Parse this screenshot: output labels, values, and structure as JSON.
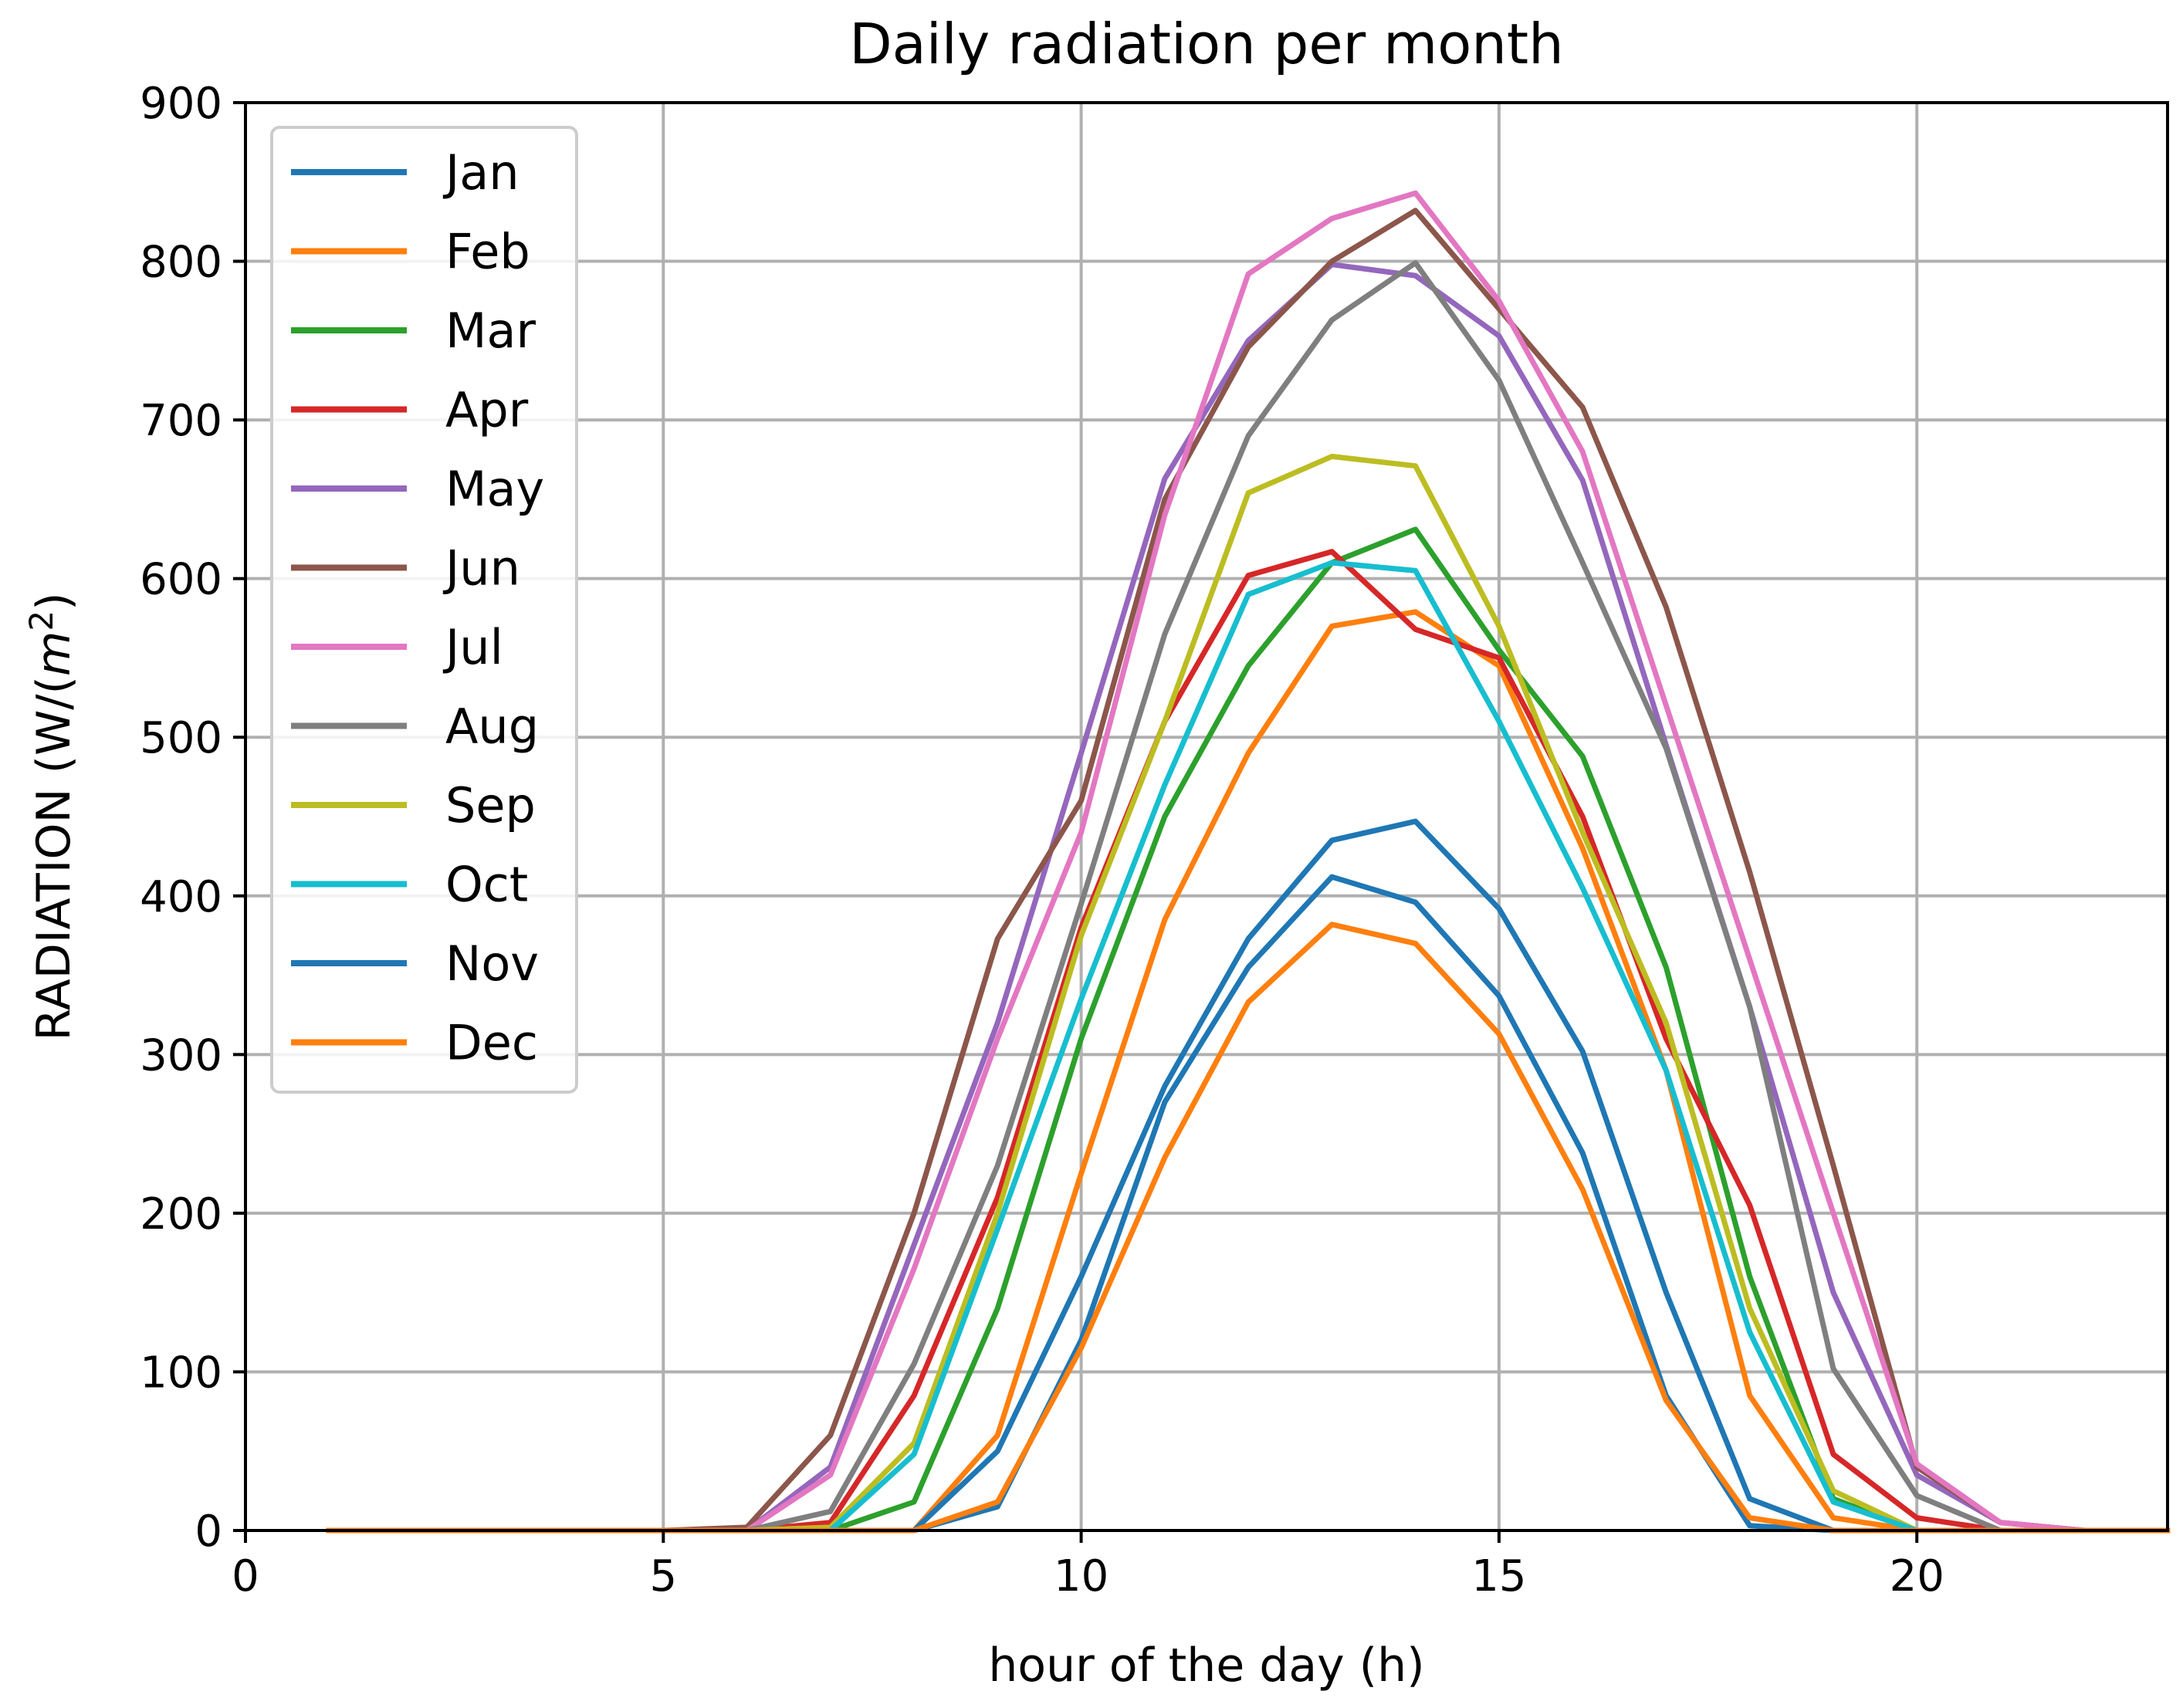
{
  "chart_data": {
    "type": "line",
    "title": "Daily radiation per month",
    "xlabel": "hour of the day (h)",
    "ylabel_prefix": "RADIATION (W/(",
    "ylabel_var": "m",
    "ylabel_sup": "2",
    "ylabel_suffix": ")",
    "xlim": [
      0,
      23
    ],
    "ylim": [
      0,
      900
    ],
    "xticks": [
      0,
      5,
      10,
      15,
      20
    ],
    "yticks": [
      0,
      100,
      200,
      300,
      400,
      500,
      600,
      700,
      800,
      900
    ],
    "grid": true,
    "legend_position": "top-left",
    "x": [
      1,
      2,
      3,
      4,
      5,
      6,
      7,
      8,
      9,
      10,
      11,
      12,
      13,
      14,
      15,
      16,
      17,
      18,
      19,
      20,
      21,
      22,
      23
    ],
    "series": [
      {
        "name": "Jan",
        "color": "#1f77b4",
        "values": [
          0,
          0,
          0,
          0,
          0,
          0,
          0,
          0,
          15,
          120,
          270,
          355,
          412,
          396,
          337,
          238,
          85,
          3,
          0,
          0,
          0,
          0,
          0
        ]
      },
      {
        "name": "Feb",
        "color": "#ff7f0e",
        "values": [
          0,
          0,
          0,
          0,
          0,
          0,
          0,
          0,
          60,
          225,
          385,
          490,
          570,
          579,
          545,
          430,
          290,
          85,
          8,
          0,
          0,
          0,
          0
        ]
      },
      {
        "name": "Mar",
        "color": "#2ca02c",
        "values": [
          0,
          0,
          0,
          0,
          0,
          0,
          0,
          18,
          140,
          310,
          450,
          545,
          610,
          631,
          555,
          488,
          355,
          160,
          20,
          0,
          0,
          0,
          0
        ]
      },
      {
        "name": "Apr",
        "color": "#d62728",
        "values": [
          0,
          0,
          0,
          0,
          0,
          0,
          5,
          85,
          210,
          380,
          510,
          602,
          617,
          568,
          550,
          450,
          310,
          205,
          48,
          8,
          0,
          0,
          0
        ]
      },
      {
        "name": "May",
        "color": "#9467bd",
        "values": [
          0,
          0,
          0,
          0,
          0,
          0,
          40,
          180,
          320,
          490,
          663,
          750,
          798,
          791,
          753,
          662,
          495,
          330,
          150,
          35,
          5,
          0,
          0
        ]
      },
      {
        "name": "Jun",
        "color": "#8c564b",
        "values": [
          0,
          0,
          0,
          0,
          0,
          2,
          60,
          200,
          373,
          460,
          650,
          746,
          800,
          832,
          770,
          708,
          582,
          415,
          230,
          40,
          5,
          0,
          0
        ]
      },
      {
        "name": "Jul",
        "color": "#e377c2",
        "values": [
          0,
          0,
          0,
          0,
          0,
          0,
          35,
          165,
          310,
          440,
          640,
          792,
          827,
          843,
          775,
          680,
          520,
          360,
          200,
          42,
          5,
          0,
          0
        ]
      },
      {
        "name": "Aug",
        "color": "#7f7f7f",
        "values": [
          0,
          0,
          0,
          0,
          0,
          0,
          12,
          105,
          230,
          395,
          565,
          690,
          763,
          799,
          725,
          610,
          493,
          330,
          102,
          22,
          0,
          0,
          0
        ]
      },
      {
        "name": "Sep",
        "color": "#bcbd22",
        "values": [
          0,
          0,
          0,
          0,
          0,
          0,
          2,
          55,
          200,
          375,
          510,
          654,
          677,
          671,
          570,
          440,
          320,
          140,
          25,
          0,
          0,
          0,
          0
        ]
      },
      {
        "name": "Oct",
        "color": "#17becf",
        "values": [
          0,
          0,
          0,
          0,
          0,
          0,
          0,
          48,
          190,
          335,
          470,
          590,
          610,
          605,
          510,
          405,
          290,
          125,
          18,
          0,
          0,
          0,
          0
        ]
      },
      {
        "name": "Nov",
        "color": "#1f77b4",
        "values": [
          0,
          0,
          0,
          0,
          0,
          0,
          0,
          0,
          50,
          160,
          280,
          373,
          435,
          447,
          392,
          302,
          150,
          20,
          0,
          0,
          0,
          0,
          0
        ]
      },
      {
        "name": "Dec",
        "color": "#ff7f0e",
        "values": [
          0,
          0,
          0,
          0,
          0,
          0,
          0,
          0,
          18,
          115,
          235,
          333,
          382,
          370,
          313,
          215,
          82,
          8,
          0,
          0,
          0,
          0,
          0
        ]
      }
    ]
  }
}
